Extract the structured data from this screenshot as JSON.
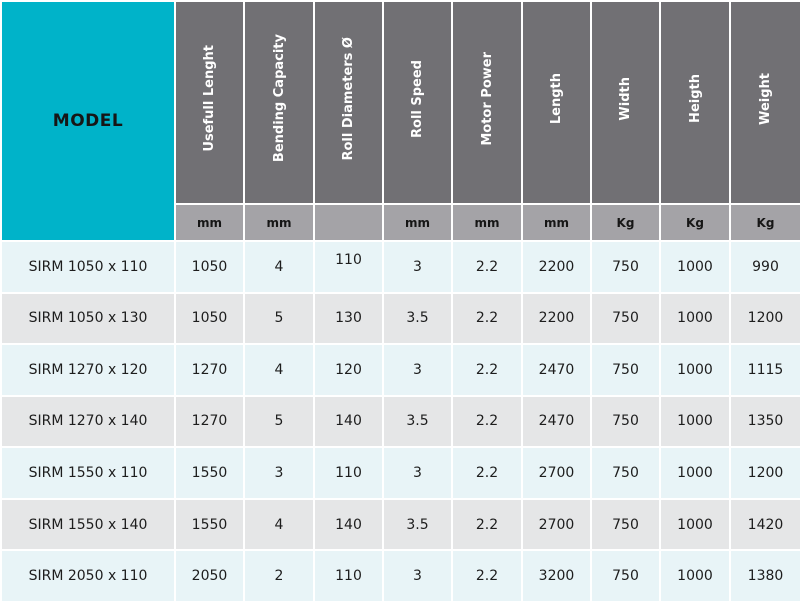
{
  "table": {
    "model_header": "MODEL",
    "columns": [
      {
        "label": "Usefull Lenght",
        "unit": "mm"
      },
      {
        "label": "Bending Capacity",
        "unit": "mm"
      },
      {
        "label": "Roll Diameters Ø",
        "unit": ""
      },
      {
        "label": "Roll Speed",
        "unit": "mm"
      },
      {
        "label": "Motor Power",
        "unit": "mm"
      },
      {
        "label": "Length",
        "unit": "mm"
      },
      {
        "label": "Width",
        "unit": "Kg"
      },
      {
        "label": "Heigth",
        "unit": "Kg"
      },
      {
        "label": "Weight",
        "unit": "Kg"
      }
    ],
    "rows": [
      {
        "model": "SIRM 1050 x 110",
        "values": [
          "1050",
          "4",
          "110",
          "3",
          "2.2",
          "2200",
          "750",
          "1000",
          "990"
        ]
      },
      {
        "model": "SIRM 1050 x 130",
        "values": [
          "1050",
          "5",
          "130",
          "3.5",
          "2.2",
          "2200",
          "750",
          "1000",
          "1200"
        ]
      },
      {
        "model": "SIRM 1270 x 120",
        "values": [
          "1270",
          "4",
          "120",
          "3",
          "2.2",
          "2470",
          "750",
          "1000",
          "1115"
        ]
      },
      {
        "model": "SIRM 1270 x 140",
        "values": [
          "1270",
          "5",
          "140",
          "3.5",
          "2.2",
          "2470",
          "750",
          "1000",
          "1350"
        ]
      },
      {
        "model": "SIRM 1550 x 110",
        "values": [
          "1550",
          "3",
          "110",
          "3",
          "2.2",
          "2700",
          "750",
          "1000",
          "1200"
        ]
      },
      {
        "model": "SIRM 1550 x 140",
        "values": [
          "1550",
          "4",
          "140",
          "3.5",
          "2.2",
          "2700",
          "750",
          "1000",
          "1420"
        ]
      },
      {
        "model": "SIRM 2050 x 110",
        "values": [
          "2050",
          "2",
          "110",
          "3",
          "2.2",
          "3200",
          "750",
          "1000",
          "1380"
        ]
      }
    ]
  }
}
